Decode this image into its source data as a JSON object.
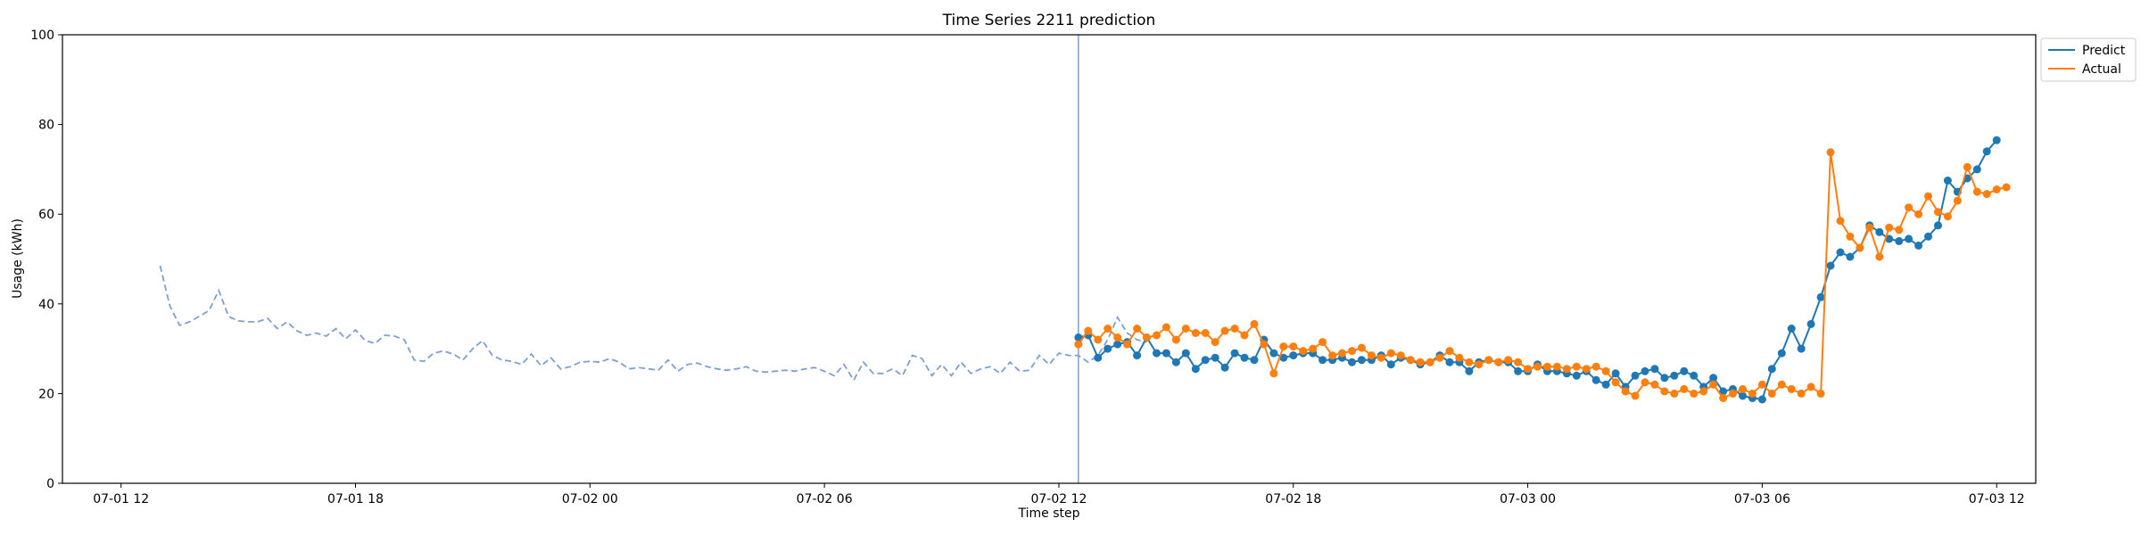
{
  "chart_data": {
    "type": "line",
    "title": "Time Series 2211 prediction",
    "xlabel": "Time step",
    "ylabel": "Usage (kWh)",
    "ylim": [
      0,
      100
    ],
    "yticks": [
      0,
      20,
      40,
      60,
      80,
      100
    ],
    "x_unit": "hours since 07-01 00:00",
    "xlim": [
      10.5,
      61.0
    ],
    "xticks": [
      {
        "pos": 12,
        "label": "07-01 12"
      },
      {
        "pos": 18,
        "label": "07-01 18"
      },
      {
        "pos": 24,
        "label": "07-02 00"
      },
      {
        "pos": 30,
        "label": "07-02 06"
      },
      {
        "pos": 36,
        "label": "07-02 12"
      },
      {
        "pos": 42,
        "label": "07-02 18"
      },
      {
        "pos": 48,
        "label": "07-03 00"
      },
      {
        "pos": 54,
        "label": "07-03 06"
      },
      {
        "pos": 60,
        "label": "07-03 12"
      }
    ],
    "grid": false,
    "legend": "upper-right-outside",
    "vline_x": 36.5,
    "colors": {
      "history": "#7f9fcf",
      "predict": "#1f77b4",
      "actual": "#ff7f0e",
      "vline": "#7f9fcf"
    },
    "history": {
      "start": 13.0,
      "step": 0.25,
      "values": [
        48.5,
        39.5,
        35.2,
        36.0,
        37.2,
        38.5,
        43.0,
        37.2,
        36.2,
        36.0,
        36.0,
        36.8,
        34.5,
        36.0,
        34.0,
        33.0,
        33.5,
        32.8,
        34.5,
        32.2,
        34.2,
        31.8,
        31.2,
        33.0,
        32.8,
        32.0,
        27.5,
        27.2,
        29.0,
        29.5,
        28.8,
        27.5,
        30.0,
        31.8,
        28.5,
        27.5,
        27.2,
        26.5,
        28.8,
        26.2,
        28.0,
        25.5,
        26.0,
        27.0,
        27.2,
        27.0,
        27.8,
        27.0,
        25.5,
        25.8,
        25.5,
        25.2,
        27.5,
        25.0,
        26.5,
        26.8,
        26.0,
        25.5,
        25.2,
        25.5,
        26.0,
        25.0,
        24.8,
        25.0,
        25.2,
        25.0,
        25.5,
        25.8,
        25.0,
        24.0,
        26.5,
        23.0,
        27.0,
        24.5,
        24.5,
        25.5,
        24.0,
        28.5,
        27.8,
        24.0,
        26.5,
        24.0,
        27.0,
        24.5,
        25.5,
        26.0,
        24.5,
        27.0,
        25.0,
        25.2,
        28.5,
        26.5,
        29.0,
        28.5,
        28.5,
        27.0,
        28.5,
        32.0,
        37.0,
        33.5,
        32.0,
        31.5
      ]
    },
    "series": [
      {
        "name": "Predict",
        "start": 36.5,
        "step": 0.25,
        "values": [
          32.5,
          33.0,
          28.0,
          30.0,
          31.0,
          31.5,
          28.5,
          32.5,
          29.0,
          29.0,
          27.0,
          29.0,
          25.5,
          27.5,
          28.0,
          25.8,
          29.0,
          28.0,
          27.5,
          32.0,
          29.0,
          28.0,
          28.5,
          29.0,
          29.0,
          27.5,
          27.5,
          28.0,
          27.0,
          27.5,
          27.5,
          28.5,
          26.5,
          28.0,
          27.5,
          26.5,
          27.0,
          28.5,
          27.0,
          27.0,
          25.0,
          27.0,
          27.5,
          27.0,
          27.0,
          25.0,
          25.0,
          26.5,
          25.0,
          25.0,
          24.5,
          24.0,
          25.0,
          23.0,
          22.0,
          24.5,
          21.5,
          24.0,
          25.0,
          25.5,
          23.5,
          24.0,
          25.0,
          24.0,
          21.5,
          23.5,
          20.5,
          21.0,
          19.5,
          19.0,
          18.7,
          25.5,
          29.0,
          34.5,
          30.0,
          35.5,
          41.5,
          48.5,
          51.5,
          50.5,
          52.5,
          57.5,
          56.0,
          54.5,
          54.0,
          54.5,
          53.0,
          55.0,
          57.5,
          67.5,
          65.0,
          68.0,
          70.0,
          74.0,
          76.5
        ]
      },
      {
        "name": "Actual",
        "start": 36.5,
        "step": 0.25,
        "values": [
          31.0,
          34.0,
          32.0,
          34.5,
          32.5,
          31.0,
          34.5,
          32.5,
          33.0,
          34.8,
          32.0,
          34.5,
          33.5,
          33.5,
          31.5,
          34.0,
          34.5,
          33.0,
          35.5,
          31.0,
          24.5,
          30.5,
          30.5,
          29.5,
          30.0,
          31.5,
          28.5,
          29.0,
          29.5,
          30.2,
          28.5,
          28.0,
          29.0,
          28.5,
          27.5,
          27.0,
          27.0,
          28.0,
          29.5,
          28.0,
          27.0,
          26.5,
          27.5,
          27.0,
          27.5,
          27.0,
          25.5,
          26.0,
          26.0,
          26.0,
          25.5,
          26.0,
          25.5,
          26.0,
          25.0,
          22.5,
          20.5,
          19.5,
          22.5,
          22.0,
          20.5,
          20.0,
          21.0,
          20.0,
          20.5,
          22.0,
          19.0,
          20.0,
          21.0,
          20.0,
          22.0,
          20.0,
          22.0,
          21.0,
          20.0,
          21.5,
          20.0,
          73.8,
          58.5,
          55.0,
          52.5,
          57.0,
          50.5,
          57.0,
          56.5,
          61.5,
          60.0,
          64.0,
          60.5,
          59.5,
          63.0,
          70.5,
          65.0,
          64.5,
          65.5,
          66.0
        ]
      }
    ]
  }
}
